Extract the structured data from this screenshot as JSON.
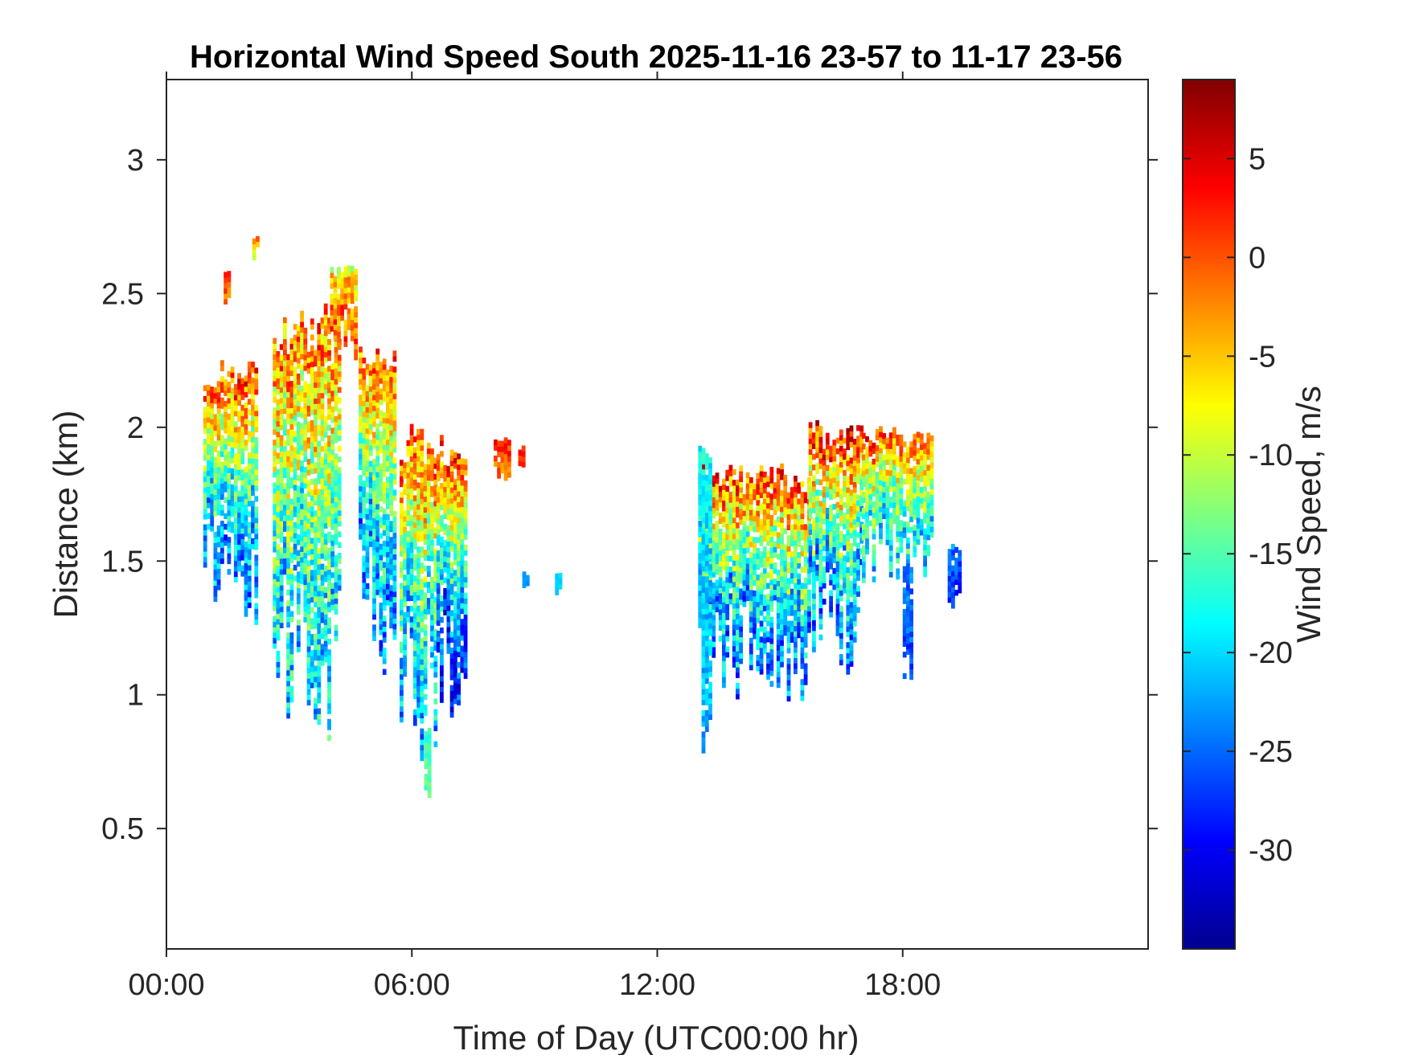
{
  "chart_data": {
    "type": "heatmap",
    "title": "Horizontal Wind Speed South 2025-11-16 23-57 to 11-17 23-56",
    "xlabel": "Time of Day (UTC00:00 hr)",
    "ylabel": "Distance (km)",
    "xlim": [
      0,
      24
    ],
    "ylim": [
      0.05,
      3.3
    ],
    "xticks": [
      {
        "value": 0,
        "label": "00:00"
      },
      {
        "value": 6,
        "label": "06:00"
      },
      {
        "value": 12,
        "label": "12:00"
      },
      {
        "value": 18,
        "label": "18:00"
      }
    ],
    "yticks": [
      {
        "value": 0.5,
        "label": "0.5"
      },
      {
        "value": 1,
        "label": "1"
      },
      {
        "value": 1.5,
        "label": "1.5"
      },
      {
        "value": 2,
        "label": "2"
      },
      {
        "value": 2.5,
        "label": "2.5"
      },
      {
        "value": 3,
        "label": "3"
      }
    ],
    "colorbar": {
      "label": "Wind Speed, m/s",
      "colormap": "jet",
      "clim": [
        -35,
        9
      ],
      "ticks": [
        {
          "value": 5,
          "label": "5"
        },
        {
          "value": 0,
          "label": "0"
        },
        {
          "value": -5,
          "label": "-5"
        },
        {
          "value": -10,
          "label": "-10"
        },
        {
          "value": -15,
          "label": "-15"
        },
        {
          "value": -20,
          "label": "-20"
        },
        {
          "value": -25,
          "label": "-25"
        },
        {
          "value": -30,
          "label": "-30"
        }
      ]
    },
    "grid": false,
    "column_width_hr": 0.0833,
    "cell_height_km": 0.02,
    "column_groups": [
      {
        "t0": 0.9,
        "t1": 2.2,
        "ybot": 1.25,
        "ytop": 2.25,
        "vtop": 1,
        "vbot": -24,
        "spread": 6
      },
      {
        "t0": 1.4,
        "t1": 1.5,
        "ybot": 2.35,
        "ytop": 2.6,
        "vtop": 3,
        "vbot": -2,
        "spread": 3
      },
      {
        "t0": 2.1,
        "t1": 2.2,
        "ybot": 2.62,
        "ytop": 2.7,
        "vtop": 1,
        "vbot": -10,
        "spread": 3
      },
      {
        "t0": 2.6,
        "t1": 4.2,
        "ybot": 0.8,
        "ytop": 2.45,
        "vtop": -1,
        "vbot": -20,
        "spread": 7
      },
      {
        "t0": 4.0,
        "t1": 4.6,
        "ybot": 2.25,
        "ytop": 2.6,
        "vtop": -8,
        "vbot": 0,
        "spread": 5
      },
      {
        "t0": 4.7,
        "t1": 5.6,
        "ybot": 0.95,
        "ytop": 2.35,
        "vtop": 0,
        "vbot": -24,
        "spread": 6
      },
      {
        "t0": 5.7,
        "t1": 6.6,
        "ybot": 0.75,
        "ytop": 2.0,
        "vtop": 0,
        "vbot": -22,
        "spread": 6
      },
      {
        "t0": 6.3,
        "t1": 6.4,
        "ybot": 0.5,
        "ytop": 0.9,
        "vtop": -17,
        "vbot": -14,
        "spread": 2
      },
      {
        "t0": 6.6,
        "t1": 7.3,
        "ybot": 0.85,
        "ytop": 1.98,
        "vtop": 1,
        "vbot": -28,
        "spread": 6
      },
      {
        "t0": 8.0,
        "t1": 8.4,
        "ybot": 1.8,
        "ytop": 1.96,
        "vtop": 3,
        "vbot": -1,
        "spread": 3
      },
      {
        "t0": 8.6,
        "t1": 8.7,
        "ybot": 1.82,
        "ytop": 1.92,
        "vtop": 2,
        "vbot": 2,
        "spread": 2
      },
      {
        "t0": 8.7,
        "t1": 8.8,
        "ybot": 1.38,
        "ytop": 1.45,
        "vtop": -23,
        "vbot": -23,
        "spread": 1
      },
      {
        "t0": 9.5,
        "t1": 9.6,
        "ybot": 1.35,
        "ytop": 1.45,
        "vtop": -20,
        "vbot": -20,
        "spread": 1
      },
      {
        "t0": 13.0,
        "t1": 15.7,
        "ybot": 0.95,
        "ytop": 1.85,
        "vtop": 1,
        "vbot": -24,
        "spread": 7
      },
      {
        "t0": 13.0,
        "t1": 13.3,
        "ybot": 0.72,
        "ytop": 1.95,
        "vtop": -18,
        "vbot": -22,
        "spread": 3
      },
      {
        "t0": 15.7,
        "t1": 17.0,
        "ybot": 1.05,
        "ytop": 2.02,
        "vtop": 3,
        "vbot": -24,
        "spread": 7
      },
      {
        "t0": 17.0,
        "t1": 18.7,
        "ybot": 1.4,
        "ytop": 2.0,
        "vtop": 1,
        "vbot": -20,
        "spread": 6
      },
      {
        "t0": 18.0,
        "t1": 18.2,
        "ybot": 1.05,
        "ytop": 1.5,
        "vtop": -24,
        "vbot": -26,
        "spread": 3
      },
      {
        "t0": 19.1,
        "t1": 19.4,
        "ybot": 1.27,
        "ytop": 1.55,
        "vtop": -24,
        "vbot": -28,
        "spread": 3
      }
    ]
  }
}
